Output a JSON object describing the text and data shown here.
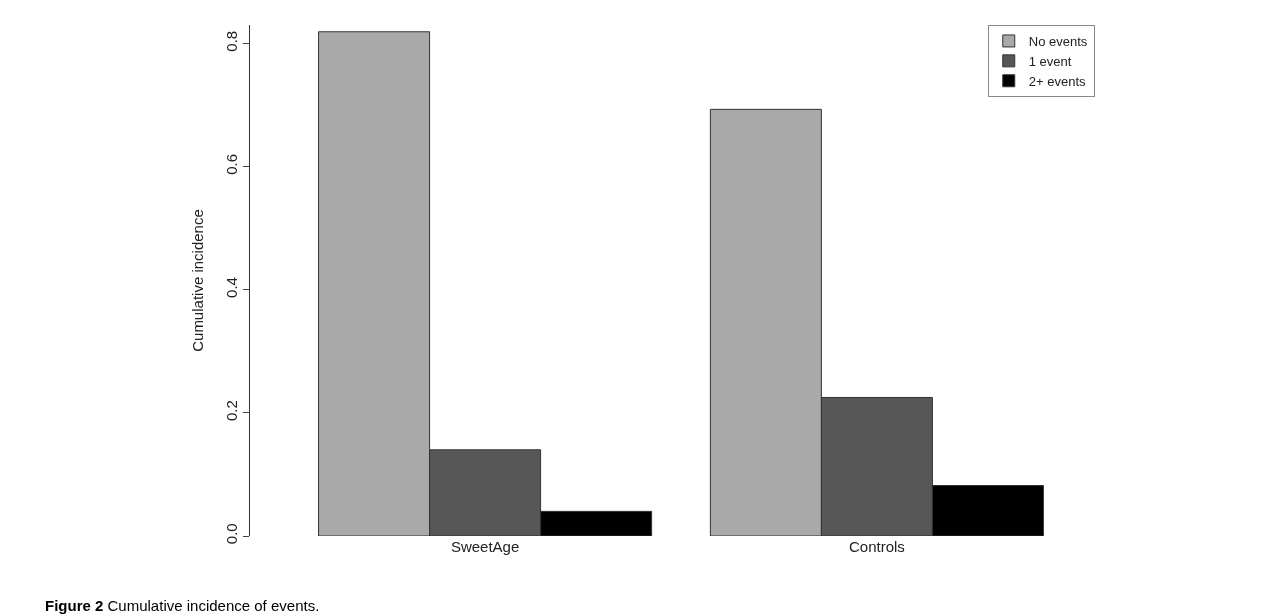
{
  "chart_data": {
    "type": "bar",
    "ylabel": "Cumulative incidence",
    "categories": [
      "SweetAge",
      "Controls"
    ],
    "series": [
      {
        "name": "No events",
        "color": "#a9a9a9",
        "values": [
          0.819,
          0.693
        ]
      },
      {
        "name": "1 event",
        "color": "#575757",
        "values": [
          0.14,
          0.225
        ]
      },
      {
        "name": "2+ events",
        "color": "#000000",
        "values": [
          0.04,
          0.082
        ]
      }
    ],
    "ylim": [
      0,
      0.83
    ],
    "yticks": [
      {
        "value": 0,
        "label": "0.0"
      },
      0.2,
      0.4,
      0.6,
      0.8
    ],
    "legend": "top right",
    "annotations": [
      "Figure 2 Cumulative incidence of events."
    ]
  }
}
